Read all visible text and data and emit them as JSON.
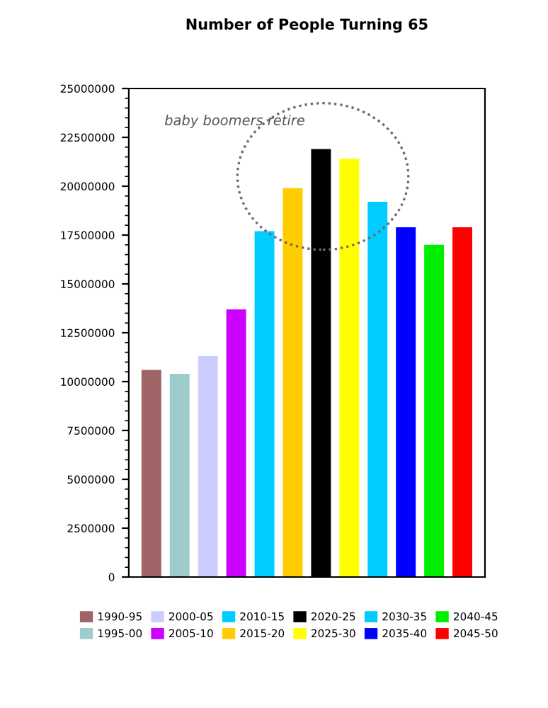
{
  "chart_data": {
    "type": "bar",
    "title": "Number of People Turning 65",
    "categories": [
      null,
      null,
      null,
      null,
      null,
      null,
      null,
      null,
      null,
      null,
      null,
      null
    ],
    "series": [
      {
        "name": "1990-95",
        "color": "#9e6466",
        "values": [
          10600000,
          null,
          null,
          null,
          null,
          null,
          null,
          null,
          null,
          null,
          null,
          null
        ]
      },
      {
        "name": "1995-00",
        "color": "#9ecccc",
        "values": [
          null,
          10400000,
          null,
          null,
          null,
          null,
          null,
          null,
          null,
          null,
          null,
          null
        ]
      },
      {
        "name": "2000-05",
        "color": "#ccccff",
        "values": [
          null,
          null,
          11300000,
          null,
          null,
          null,
          null,
          null,
          null,
          null,
          null,
          null
        ]
      },
      {
        "name": "2005-10",
        "color": "#cc00ff",
        "values": [
          null,
          null,
          null,
          13700000,
          null,
          null,
          null,
          null,
          null,
          null,
          null,
          null
        ]
      },
      {
        "name": "2010-15",
        "color": "#00ccff",
        "values": [
          null,
          null,
          null,
          null,
          17700000,
          null,
          null,
          null,
          null,
          null,
          null,
          null
        ]
      },
      {
        "name": "2015-20",
        "color": "#ffcc00",
        "values": [
          null,
          null,
          null,
          null,
          null,
          19900000,
          null,
          null,
          null,
          null,
          null,
          null
        ]
      },
      {
        "name": "2020-25",
        "color": "#000000",
        "values": [
          null,
          null,
          null,
          null,
          null,
          null,
          21900000,
          null,
          null,
          null,
          null,
          null
        ]
      },
      {
        "name": "2025-30",
        "color": "#ffff00",
        "values": [
          null,
          null,
          null,
          null,
          null,
          null,
          null,
          21400000,
          null,
          null,
          null,
          null
        ]
      },
      {
        "name": "2030-35",
        "color": "#00ccff",
        "values": [
          null,
          null,
          null,
          null,
          null,
          null,
          null,
          null,
          19200000,
          null,
          null,
          null
        ]
      },
      {
        "name": "2035-40",
        "color": "#0000ff",
        "values": [
          null,
          null,
          null,
          null,
          null,
          null,
          null,
          null,
          null,
          17900000,
          null,
          null
        ]
      },
      {
        "name": "2040-45",
        "color": "#00ee00",
        "values": [
          null,
          null,
          null,
          null,
          null,
          null,
          null,
          null,
          null,
          null,
          17000000,
          null
        ]
      },
      {
        "name": "2045-50",
        "color": "#ff0000",
        "values": [
          null,
          null,
          null,
          null,
          null,
          null,
          null,
          null,
          null,
          null,
          null,
          17900000
        ]
      }
    ],
    "ylim": [
      0,
      25000000
    ],
    "yticks": [
      0,
      2500000,
      5000000,
      7500000,
      10000000,
      12500000,
      15000000,
      17500000,
      20000000,
      22500000,
      25000000
    ],
    "tick_labels": "y",
    "legend": "bottom",
    "annotations": [
      "baby boomers retire"
    ]
  }
}
